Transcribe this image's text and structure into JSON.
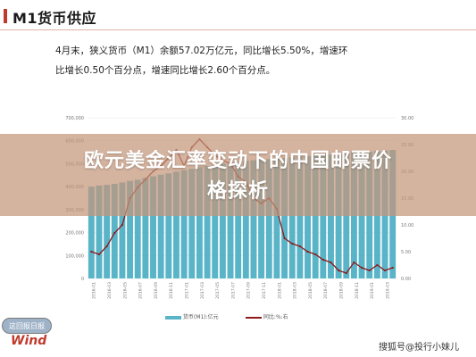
{
  "header": {
    "title": "M1货币供应",
    "accent_color": "#c0392b"
  },
  "description": {
    "line1": "4月末，狭义货币（M1）余额57.02万亿元，同比增长5.50%，增速环",
    "line2": "比增长0.50个百分点，增速同比增长2.60个百分点。"
  },
  "overlay": {
    "headline_line1": "欧元美金汇率变动下的中国邮票价",
    "headline_line2": "格探析"
  },
  "branding": {
    "logo_top_text": "这回报日报",
    "logo_bottom_text": "Wind",
    "watermark_text": "搜狐号@投行小妹儿"
  },
  "chart_data": {
    "type": "bar",
    "left_ylim": [
      0,
      700000
    ],
    "right_ylim": [
      0,
      30
    ],
    "left_ticks": [
      "700,000",
      "600,000",
      "500,000",
      "400,000",
      "300,000",
      "200,000",
      "100,000",
      "0"
    ],
    "right_ticks": [
      "30.00",
      "25.00",
      "20.00",
      "15.00",
      "10.00",
      "5.00",
      "0.00"
    ],
    "x_labels": [
      "2016-01",
      "2016-03",
      "2016-05",
      "2016-07",
      "2016-09",
      "2016-11",
      "2017-01",
      "2017-03",
      "2017-05",
      "2017-07",
      "2017-09",
      "2017-11",
      "2018-01",
      "2018-03",
      "2018-05",
      "2018-07",
      "2018-09",
      "2018-11",
      "2019-01",
      "2019-03"
    ],
    "series": [
      {
        "name": "货币(M1):亿元",
        "color": "#5ab4c8",
        "values": [
          400000,
          405000,
          408000,
          412000,
          418000,
          425000,
          430000,
          438000,
          445000,
          452000,
          458000,
          465000,
          472000,
          478000,
          485000,
          490000,
          495000,
          500000,
          505000,
          510000,
          512000,
          515000,
          518000,
          520000,
          522000,
          525000,
          528000,
          530000,
          533000,
          535000,
          538000,
          540000,
          542000,
          545000,
          548000,
          550000,
          552000,
          555000,
          558000,
          560000
        ]
      },
      {
        "name": "同比:%:右",
        "color": "#8b1a1a",
        "values": [
          5.0,
          4.5,
          6.0,
          8.5,
          10.0,
          15.0,
          17.0,
          18.5,
          20.0,
          21.0,
          22.5,
          24.0,
          21.0,
          24.5,
          26.0,
          24.5,
          23.0,
          22.0,
          21.5,
          19.0,
          18.0,
          15.0,
          14.0,
          15.0,
          13.0,
          7.5,
          6.5,
          6.0,
          5.0,
          4.5,
          3.5,
          3.0,
          1.5,
          1.0,
          3.0,
          2.0,
          1.5,
          2.5,
          1.5,
          2.0
        ]
      }
    ]
  }
}
